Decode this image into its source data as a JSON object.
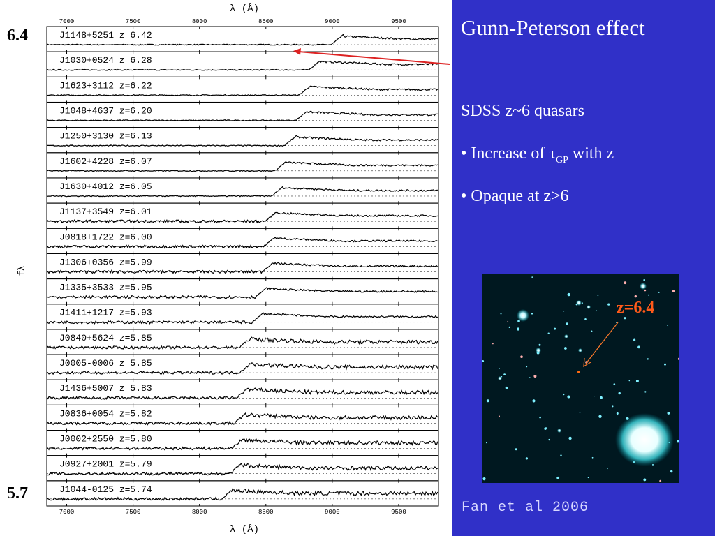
{
  "slide": {
    "title": "Gunn-Peterson effect",
    "subtitle": "SDSS z~6 quasars",
    "bullets": [
      {
        "prefix": "• Increase of ",
        "symbol": "τ",
        "subscript": "GP",
        "suffix": " with z"
      },
      {
        "prefix": "• Opaque at z>6"
      }
    ],
    "credit": "Fan et al 2006",
    "image_label": "z=6.4",
    "side_labels": {
      "top": "6.4",
      "bottom": "5.7"
    }
  },
  "colors": {
    "background_right": "#3030c8",
    "text": "#ffffff",
    "arrow_line": "#dd2222",
    "image_label": "#ff5a1a"
  },
  "chart_data": {
    "type": "line",
    "title": "",
    "xlabel": "λ (Å)",
    "ylabel": "fλ",
    "xlim": [
      6850,
      9800
    ],
    "x_ticks": [
      7000,
      7500,
      8000,
      8500,
      9000,
      9500
    ],
    "series": [
      {
        "name": "J1148+5251",
        "z": "6.42",
        "z_value": 6.42
      },
      {
        "name": "J1030+0524",
        "z": "6.28",
        "z_value": 6.28
      },
      {
        "name": "J1623+3112",
        "z": "6.22",
        "z_value": 6.22
      },
      {
        "name": "J1048+4637",
        "z": "6.20",
        "z_value": 6.2
      },
      {
        "name": "J1250+3130",
        "z": "6.13",
        "z_value": 6.13
      },
      {
        "name": "J1602+4228",
        "z": "6.07",
        "z_value": 6.07
      },
      {
        "name": "J1630+4012",
        "z": "6.05",
        "z_value": 6.05
      },
      {
        "name": "J1137+3549",
        "z": "6.01",
        "z_value": 6.01
      },
      {
        "name": "J0818+1722",
        "z": "6.00",
        "z_value": 6.0
      },
      {
        "name": "J1306+0356",
        "z": "5.99",
        "z_value": 5.99
      },
      {
        "name": "J1335+3533",
        "z": "5.95",
        "z_value": 5.95
      },
      {
        "name": "J1411+1217",
        "z": "5.93",
        "z_value": 5.93
      },
      {
        "name": "J0840+5624",
        "z": "5.85",
        "z_value": 5.85
      },
      {
        "name": "J0005-0006",
        "z": "5.85",
        "z_value": 5.85
      },
      {
        "name": "J1436+5007",
        "z": "5.83",
        "z_value": 5.83
      },
      {
        "name": "J0836+0054",
        "z": "5.82",
        "z_value": 5.82
      },
      {
        "name": "J0002+2550",
        "z": "5.80",
        "z_value": 5.8
      },
      {
        "name": "J0927+2001",
        "z": "5.79",
        "z_value": 5.79
      },
      {
        "name": "J1044-0125",
        "z": "5.74",
        "z_value": 5.74
      }
    ]
  }
}
